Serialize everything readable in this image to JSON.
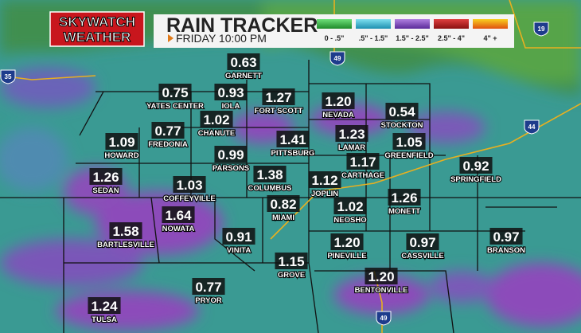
{
  "header": {
    "logo": [
      "SKYWATCH",
      "WEATHER"
    ],
    "title": "RAIN TRACKER",
    "time": "FRIDAY 10:00 PM"
  },
  "legend": [
    "0 - .5\"",
    ".5\" - 1.5\"",
    "1.5\" - 2.5\"",
    "2.5\" - 4\"",
    "4\" +"
  ],
  "highways": [
    "49",
    "35",
    "19",
    "44",
    "49"
  ],
  "cities": [
    {
      "value": "0.63",
      "name": "GARNETT"
    },
    {
      "value": "0.75",
      "name": "YATES CENTER"
    },
    {
      "value": "0.93",
      "name": "IOLA"
    },
    {
      "value": "1.27",
      "name": "FORT SCOTT"
    },
    {
      "value": "1.20",
      "name": "NEVADA"
    },
    {
      "value": "0.54",
      "name": "STOCKTON"
    },
    {
      "value": "1.02",
      "name": "CHANUTE"
    },
    {
      "value": "1.09",
      "name": "HOWARD"
    },
    {
      "value": "0.77",
      "name": "FREDONIA"
    },
    {
      "value": "1.41",
      "name": "PITTSBURG"
    },
    {
      "value": "1.23",
      "name": "LAMAR"
    },
    {
      "value": "1.05",
      "name": "GREENFIELD"
    },
    {
      "value": "0.99",
      "name": "PARSONS"
    },
    {
      "value": "1.17",
      "name": "CARTHAGE"
    },
    {
      "value": "0.92",
      "name": "SPRINGFIELD"
    },
    {
      "value": "1.26",
      "name": "SEDAN"
    },
    {
      "value": "1.03",
      "name": "COFFEYVILLE"
    },
    {
      "value": "1.38",
      "name": "COLUMBUS"
    },
    {
      "value": "1.12",
      "name": "JOPLIN"
    },
    {
      "value": "1.26",
      "name": "MONETT"
    },
    {
      "value": "0.82",
      "name": "MIAMI"
    },
    {
      "value": "1.02",
      "name": "NEOSHO"
    },
    {
      "value": "1.64",
      "name": "NOWATA"
    },
    {
      "value": "1.58",
      "name": "BARTLESVILLE"
    },
    {
      "value": "0.91",
      "name": "VINITA"
    },
    {
      "value": "1.20",
      "name": "PINEVILLE"
    },
    {
      "value": "0.97",
      "name": "CASSVILLE"
    },
    {
      "value": "0.97",
      "name": "BRANSON"
    },
    {
      "value": "1.15",
      "name": "GROVE"
    },
    {
      "value": "1.20",
      "name": "BENTONVILLE"
    },
    {
      "value": "0.77",
      "name": "PRYOR"
    },
    {
      "value": "1.24",
      "name": "TULSA"
    }
  ]
}
